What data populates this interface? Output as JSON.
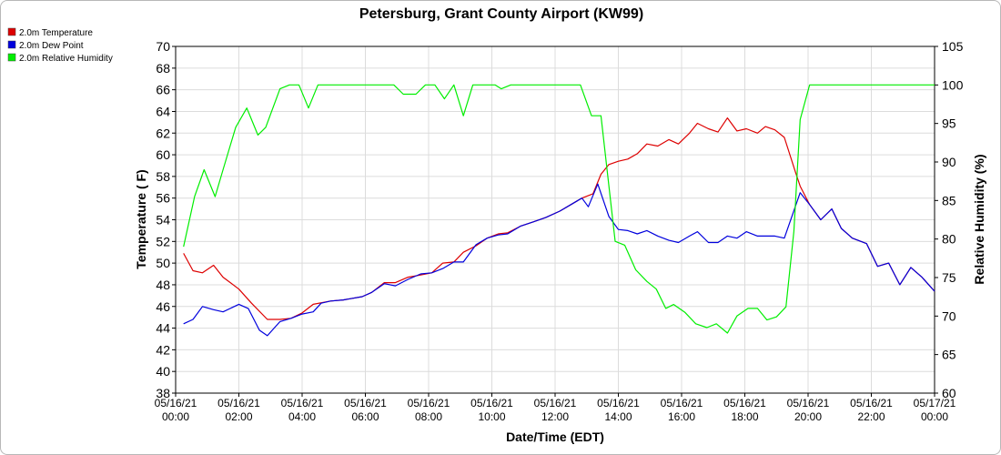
{
  "chart_data": {
    "type": "line",
    "title": "Petersburg, Grant County Airport (KW99)",
    "xlabel": "Date/Time (EDT)",
    "ylabel_left": "Temperature ( F)",
    "ylabel_right": "Relative Humidity (%)",
    "ylim_left": [
      38,
      70
    ],
    "ylim_right": [
      60,
      105
    ],
    "left_ticks": [
      38,
      40,
      42,
      44,
      46,
      48,
      50,
      52,
      54,
      56,
      58,
      60,
      62,
      64,
      66,
      68,
      70
    ],
    "right_ticks": [
      60,
      65,
      70,
      75,
      80,
      85,
      90,
      95,
      100,
      105
    ],
    "x_range_hours": [
      0,
      24
    ],
    "x_ticks": [
      {
        "h": 0,
        "date": "05/16/21",
        "time": "00:00"
      },
      {
        "h": 2,
        "date": "05/16/21",
        "time": "02:00"
      },
      {
        "h": 4,
        "date": "05/16/21",
        "time": "04:00"
      },
      {
        "h": 6,
        "date": "05/16/21",
        "time": "06:00"
      },
      {
        "h": 8,
        "date": "05/16/21",
        "time": "08:00"
      },
      {
        "h": 10,
        "date": "05/16/21",
        "time": "10:00"
      },
      {
        "h": 12,
        "date": "05/16/21",
        "time": "12:00"
      },
      {
        "h": 14,
        "date": "05/16/21",
        "time": "14:00"
      },
      {
        "h": 16,
        "date": "05/16/21",
        "time": "16:00"
      },
      {
        "h": 18,
        "date": "05/16/21",
        "time": "18:00"
      },
      {
        "h": 20,
        "date": "05/16/21",
        "time": "20:00"
      },
      {
        "h": 22,
        "date": "05/16/21",
        "time": "22:00"
      },
      {
        "h": 24,
        "date": "05/17/21",
        "time": "00:00"
      }
    ],
    "grid": true,
    "legend_position": "top-left",
    "series": [
      {
        "name": "2.0m Temperature",
        "color": "#dd0000",
        "axis": "left",
        "points": [
          [
            0.25,
            50.9
          ],
          [
            0.55,
            49.3
          ],
          [
            0.85,
            49.1
          ],
          [
            1.2,
            49.8
          ],
          [
            1.5,
            48.7
          ],
          [
            2.0,
            47.6
          ],
          [
            2.4,
            46.3
          ],
          [
            2.9,
            44.8
          ],
          [
            3.3,
            44.8
          ],
          [
            3.65,
            44.9
          ],
          [
            4.0,
            45.4
          ],
          [
            4.35,
            46.2
          ],
          [
            4.9,
            46.5
          ],
          [
            5.3,
            46.6
          ],
          [
            5.9,
            46.9
          ],
          [
            6.2,
            47.3
          ],
          [
            6.6,
            48.2
          ],
          [
            6.95,
            48.2
          ],
          [
            7.35,
            48.7
          ],
          [
            7.75,
            48.9
          ],
          [
            8.1,
            49.1
          ],
          [
            8.45,
            50.0
          ],
          [
            8.8,
            50.1
          ],
          [
            9.1,
            51.0
          ],
          [
            9.5,
            51.6
          ],
          [
            9.85,
            52.3
          ],
          [
            10.2,
            52.7
          ],
          [
            10.5,
            52.8
          ],
          [
            10.9,
            53.4
          ],
          [
            11.3,
            53.8
          ],
          [
            11.7,
            54.2
          ],
          [
            12.15,
            54.8
          ],
          [
            12.5,
            55.4
          ],
          [
            12.85,
            56.0
          ],
          [
            13.2,
            56.4
          ],
          [
            13.45,
            58.2
          ],
          [
            13.7,
            59.1
          ],
          [
            14.0,
            59.4
          ],
          [
            14.3,
            59.6
          ],
          [
            14.6,
            60.1
          ],
          [
            14.9,
            61.0
          ],
          [
            15.25,
            60.8
          ],
          [
            15.6,
            61.4
          ],
          [
            15.9,
            61.0
          ],
          [
            16.25,
            62.0
          ],
          [
            16.5,
            62.9
          ],
          [
            16.85,
            62.4
          ],
          [
            17.15,
            62.1
          ],
          [
            17.45,
            63.4
          ],
          [
            17.75,
            62.2
          ],
          [
            18.05,
            62.4
          ],
          [
            18.4,
            62.0
          ],
          [
            18.65,
            62.6
          ],
          [
            18.95,
            62.3
          ],
          [
            19.25,
            61.6
          ],
          [
            19.6,
            58.4
          ],
          [
            19.75,
            57.1
          ],
          [
            20.05,
            55.4
          ],
          [
            20.4,
            54.0
          ],
          [
            20.75,
            55.0
          ],
          [
            21.05,
            53.2
          ],
          [
            21.4,
            52.3
          ],
          [
            21.85,
            51.8
          ],
          [
            22.2,
            49.7
          ],
          [
            22.55,
            50.0
          ],
          [
            22.9,
            48.0
          ],
          [
            23.25,
            49.6
          ],
          [
            23.6,
            48.7
          ],
          [
            24.0,
            47.4
          ]
        ]
      },
      {
        "name": "2.0m Dew Point",
        "color": "#0000dd",
        "axis": "left",
        "points": [
          [
            0.25,
            44.4
          ],
          [
            0.55,
            44.8
          ],
          [
            0.85,
            46.0
          ],
          [
            1.2,
            45.7
          ],
          [
            1.5,
            45.5
          ],
          [
            2.0,
            46.2
          ],
          [
            2.3,
            45.8
          ],
          [
            2.65,
            43.8
          ],
          [
            2.9,
            43.3
          ],
          [
            3.3,
            44.6
          ],
          [
            3.65,
            44.9
          ],
          [
            4.0,
            45.3
          ],
          [
            4.35,
            45.5
          ],
          [
            4.6,
            46.3
          ],
          [
            4.9,
            46.5
          ],
          [
            5.3,
            46.6
          ],
          [
            5.9,
            46.9
          ],
          [
            6.2,
            47.3
          ],
          [
            6.6,
            48.1
          ],
          [
            6.95,
            47.9
          ],
          [
            7.35,
            48.5
          ],
          [
            7.75,
            49.0
          ],
          [
            8.1,
            49.1
          ],
          [
            8.45,
            49.5
          ],
          [
            8.8,
            50.1
          ],
          [
            9.1,
            50.1
          ],
          [
            9.5,
            51.7
          ],
          [
            9.85,
            52.3
          ],
          [
            10.2,
            52.6
          ],
          [
            10.5,
            52.7
          ],
          [
            10.9,
            53.4
          ],
          [
            11.3,
            53.8
          ],
          [
            11.7,
            54.2
          ],
          [
            12.15,
            54.8
          ],
          [
            12.5,
            55.4
          ],
          [
            12.85,
            56.0
          ],
          [
            13.05,
            55.2
          ],
          [
            13.35,
            57.3
          ],
          [
            13.7,
            54.3
          ],
          [
            14.0,
            53.1
          ],
          [
            14.3,
            53.0
          ],
          [
            14.6,
            52.7
          ],
          [
            14.9,
            53.0
          ],
          [
            15.25,
            52.5
          ],
          [
            15.6,
            52.1
          ],
          [
            15.9,
            51.9
          ],
          [
            16.25,
            52.5
          ],
          [
            16.5,
            52.9
          ],
          [
            16.85,
            51.9
          ],
          [
            17.15,
            51.9
          ],
          [
            17.45,
            52.5
          ],
          [
            17.75,
            52.3
          ],
          [
            18.05,
            52.9
          ],
          [
            18.4,
            52.5
          ],
          [
            18.65,
            52.5
          ],
          [
            18.95,
            52.5
          ],
          [
            19.25,
            52.3
          ],
          [
            19.75,
            56.5
          ],
          [
            20.05,
            55.4
          ],
          [
            20.4,
            54.0
          ],
          [
            20.75,
            55.0
          ],
          [
            21.05,
            53.2
          ],
          [
            21.4,
            52.3
          ],
          [
            21.85,
            51.8
          ],
          [
            22.2,
            49.7
          ],
          [
            22.55,
            50.0
          ],
          [
            22.9,
            48.0
          ],
          [
            23.25,
            49.6
          ],
          [
            23.6,
            48.7
          ],
          [
            24.0,
            47.4
          ]
        ]
      },
      {
        "name": "2.0m Relative Humidity",
        "color": "#00ee00",
        "axis": "right",
        "points": [
          [
            0.25,
            79.0
          ],
          [
            0.6,
            85.5
          ],
          [
            0.9,
            89.0
          ],
          [
            1.25,
            85.5
          ],
          [
            1.5,
            89.0
          ],
          [
            1.9,
            94.5
          ],
          [
            2.25,
            97.0
          ],
          [
            2.6,
            93.5
          ],
          [
            2.85,
            94.5
          ],
          [
            3.3,
            99.5
          ],
          [
            3.6,
            100.0
          ],
          [
            3.9,
            100.0
          ],
          [
            4.2,
            97.0
          ],
          [
            4.5,
            100.0
          ],
          [
            5.0,
            100.0
          ],
          [
            5.5,
            100.0
          ],
          [
            6.0,
            100.0
          ],
          [
            6.5,
            100.0
          ],
          [
            6.9,
            100.0
          ],
          [
            7.2,
            98.8
          ],
          [
            7.6,
            98.8
          ],
          [
            7.9,
            100.0
          ],
          [
            8.2,
            100.0
          ],
          [
            8.5,
            98.2
          ],
          [
            8.8,
            100.0
          ],
          [
            9.1,
            96.0
          ],
          [
            9.4,
            100.0
          ],
          [
            9.7,
            100.0
          ],
          [
            10.1,
            100.0
          ],
          [
            10.3,
            99.5
          ],
          [
            10.6,
            100.0
          ],
          [
            11.0,
            100.0
          ],
          [
            11.5,
            100.0
          ],
          [
            12.0,
            100.0
          ],
          [
            12.5,
            100.0
          ],
          [
            12.8,
            100.0
          ],
          [
            13.15,
            96.0
          ],
          [
            13.45,
            96.0
          ],
          [
            13.9,
            79.7
          ],
          [
            14.2,
            79.2
          ],
          [
            14.55,
            76.0
          ],
          [
            14.9,
            74.5
          ],
          [
            15.2,
            73.5
          ],
          [
            15.5,
            71.0
          ],
          [
            15.75,
            71.5
          ],
          [
            16.1,
            70.5
          ],
          [
            16.45,
            69.0
          ],
          [
            16.8,
            68.5
          ],
          [
            17.1,
            69.0
          ],
          [
            17.45,
            67.8
          ],
          [
            17.75,
            70.0
          ],
          [
            18.1,
            71.0
          ],
          [
            18.4,
            71.0
          ],
          [
            18.7,
            69.5
          ],
          [
            19.0,
            69.9
          ],
          [
            19.3,
            71.2
          ],
          [
            19.55,
            81.0
          ],
          [
            19.75,
            95.5
          ],
          [
            20.05,
            100.0
          ],
          [
            20.5,
            100.0
          ],
          [
            21.0,
            100.0
          ],
          [
            22.0,
            100.0
          ],
          [
            23.0,
            100.0
          ],
          [
            24.0,
            100.0
          ]
        ]
      }
    ]
  }
}
